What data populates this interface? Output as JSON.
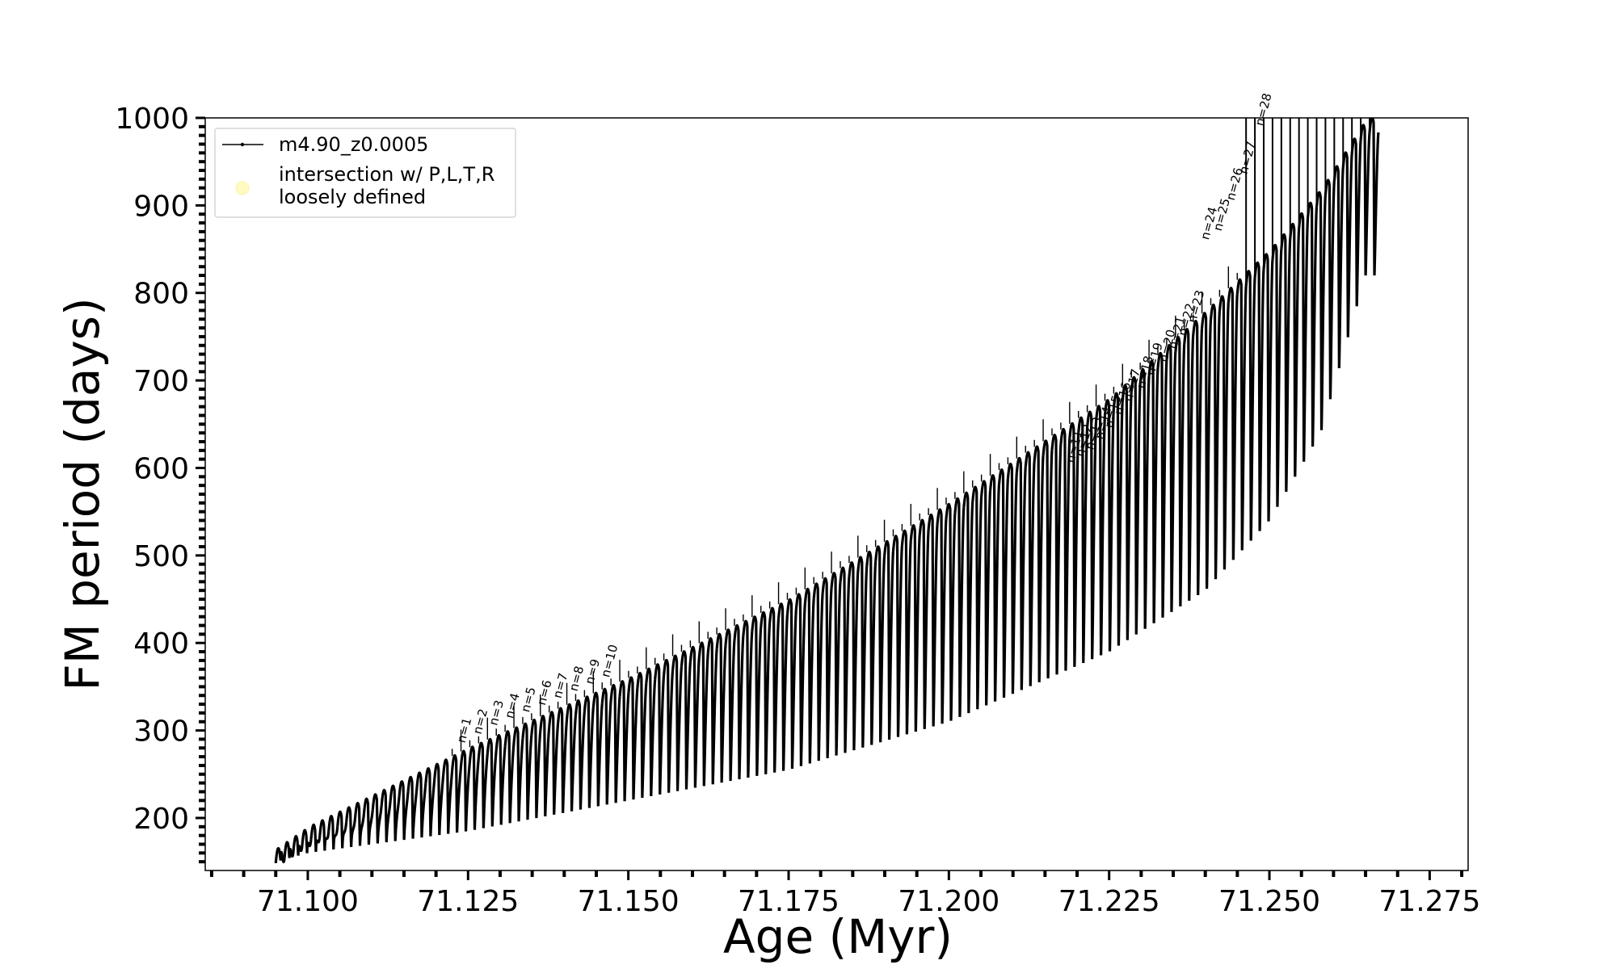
{
  "chart_data": {
    "type": "line",
    "xlabel": "Age (Myr)",
    "ylabel": "FM period (days)",
    "xlim": [
      71.084,
      71.281
    ],
    "ylim": [
      140,
      1000
    ],
    "x_ticks": [
      "71.100",
      "71.125",
      "71.150",
      "71.175",
      "71.200",
      "71.225",
      "71.250",
      "71.275"
    ],
    "x_tick_values": [
      71.1,
      71.125,
      71.15,
      71.175,
      71.2,
      71.225,
      71.25,
      71.275
    ],
    "y_ticks": [
      "200",
      "300",
      "400",
      "500",
      "600",
      "700",
      "800",
      "900",
      "1000"
    ],
    "y_tick_values": [
      200,
      300,
      400,
      500,
      600,
      700,
      800,
      900,
      1000
    ],
    "grid": false,
    "legend_position": "top-left",
    "legend": [
      {
        "label": "m4.90_z0.0005",
        "marker": "line-dot",
        "color": "#000000"
      },
      {
        "label_line1": "intersection w/ P,L,T,R",
        "label_line2": "loosely defined",
        "marker": "circle",
        "color": "#fff9c4"
      }
    ],
    "series": [
      {
        "name": "m4.90_z0.0005",
        "color": "#000000",
        "description_of_shape": "thermal pulse loops: each loop rises to an upper period envelope and dips to a lower envelope",
        "pulse_count": 125,
        "age_start": 71.095,
        "age_end": 71.267,
        "upper_envelope": {
          "x": [
            71.095,
            71.1,
            71.125,
            71.15,
            71.175,
            71.2,
            71.225,
            71.24,
            71.25,
            71.258,
            71.265
          ],
          "y": [
            165,
            190,
            280,
            360,
            450,
            560,
            680,
            780,
            850,
            920,
            1000
          ]
        },
        "lower_envelope": {
          "x": [
            71.095,
            71.1,
            71.125,
            71.15,
            71.175,
            71.2,
            71.225,
            71.24,
            71.25,
            71.258,
            71.265
          ],
          "y": [
            150,
            160,
            185,
            220,
            255,
            310,
            390,
            460,
            540,
            640,
            820
          ]
        },
        "extend_beyond_top_after_age": 71.246
      }
    ],
    "annotations": [
      {
        "text": "n=1",
        "x": 71.1245,
        "y": 285
      },
      {
        "text": "n=2",
        "x": 71.127,
        "y": 295
      },
      {
        "text": "n=3",
        "x": 71.1295,
        "y": 305
      },
      {
        "text": "n=4",
        "x": 71.132,
        "y": 313
      },
      {
        "text": "n=5",
        "x": 71.1345,
        "y": 320
      },
      {
        "text": "n=6",
        "x": 71.137,
        "y": 328
      },
      {
        "text": "n=7",
        "x": 71.1395,
        "y": 336
      },
      {
        "text": "n=8",
        "x": 71.142,
        "y": 344
      },
      {
        "text": "n=9",
        "x": 71.1445,
        "y": 352
      },
      {
        "text": "n=10",
        "x": 71.147,
        "y": 360
      },
      {
        "text": "n=11",
        "x": 71.2195,
        "y": 605
      },
      {
        "text": "n=12",
        "x": 71.221,
        "y": 612
      },
      {
        "text": "n=13",
        "x": 71.2225,
        "y": 620
      },
      {
        "text": "n=14",
        "x": 71.224,
        "y": 632
      },
      {
        "text": "n=15",
        "x": 71.2255,
        "y": 645
      },
      {
        "text": "n=16",
        "x": 71.227,
        "y": 660
      },
      {
        "text": "n=17",
        "x": 71.2285,
        "y": 675
      },
      {
        "text": "n=18",
        "x": 71.2305,
        "y": 690
      },
      {
        "text": "n=19",
        "x": 71.232,
        "y": 705
      },
      {
        "text": "n=20",
        "x": 71.234,
        "y": 720
      },
      {
        "text": "n=21",
        "x": 71.2355,
        "y": 735
      },
      {
        "text": "n=22",
        "x": 71.237,
        "y": 750
      },
      {
        "text": "n=23",
        "x": 71.2385,
        "y": 765
      },
      {
        "text": "n=24",
        "x": 71.2405,
        "y": 860
      },
      {
        "text": "n=25",
        "x": 71.2425,
        "y": 870
      },
      {
        "text": "n=26",
        "x": 71.2445,
        "y": 905
      },
      {
        "text": "n=27",
        "x": 71.2465,
        "y": 935
      },
      {
        "text": "n=28",
        "x": 71.249,
        "y": 990
      }
    ]
  }
}
